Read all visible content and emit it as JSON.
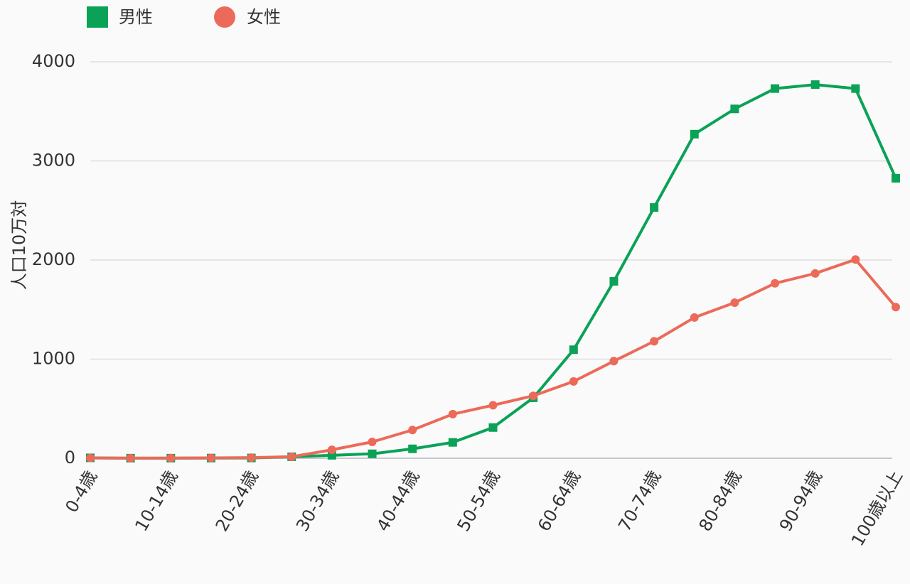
{
  "chart_data": {
    "type": "line",
    "y_label": "人口10万対",
    "categories": [
      "0-4歳",
      null,
      "10-14歳",
      null,
      "20-24歳",
      null,
      "30-34歳",
      null,
      "40-44歳",
      null,
      "50-54歳",
      null,
      "60-64歳",
      null,
      "70-74歳",
      null,
      "80-84歳",
      null,
      "90-94歳",
      null,
      "100歳以上"
    ],
    "series": [
      {
        "name": "男性",
        "color": "#0aa257",
        "marker": "square",
        "values": [
          4,
          1,
          1,
          2,
          3,
          15,
          30,
          45,
          95,
          160,
          310,
          610,
          1095,
          1785,
          2530,
          3270,
          3525,
          3730,
          3770,
          3730,
          2825
        ]
      },
      {
        "name": "女性",
        "color": "#ec6a59",
        "marker": "circle",
        "values": [
          3,
          1,
          2,
          4,
          6,
          15,
          85,
          165,
          285,
          445,
          535,
          630,
          775,
          980,
          1180,
          1420,
          1570,
          1765,
          1865,
          2005,
          1525
        ]
      }
    ],
    "ylim": [
      0,
      4000
    ],
    "yticks": [
      0,
      1000,
      2000,
      3000,
      4000
    ],
    "grid": true
  }
}
